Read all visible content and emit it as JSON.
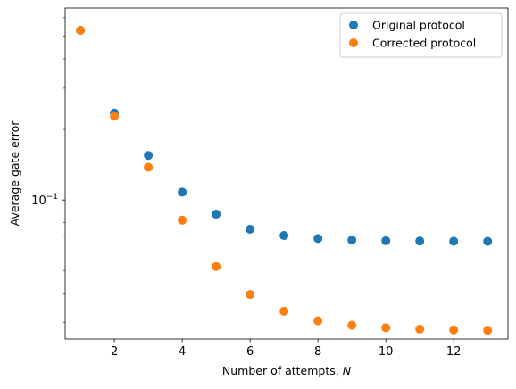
{
  "chart_data": {
    "type": "scatter",
    "title": "",
    "xlabel": "Number of attempts, ",
    "xlabel_var": "N",
    "ylabel": "Average gate error",
    "yscale": "log",
    "xlim": [
      0.55,
      13.6
    ],
    "ylim": [
      0.0255,
      0.66
    ],
    "x_ticks": [
      2,
      4,
      6,
      8,
      10,
      12
    ],
    "x_tick_labels": [
      "2",
      "4",
      "6",
      "8",
      "10",
      "12"
    ],
    "y_major_ticks": [
      0.1
    ],
    "y_major_tick_labels": [
      "10",
      "−1"
    ],
    "y_minor_ticks": [
      0.03,
      0.04,
      0.05,
      0.06,
      0.07,
      0.08,
      0.09,
      0.2,
      0.3,
      0.4,
      0.5,
      0.6
    ],
    "grid": false,
    "legend_position": "top-right",
    "series": [
      {
        "name": "Original protocol",
        "color": "#1f77b4",
        "x": [
          1,
          2,
          3,
          4,
          5,
          6,
          7,
          8,
          9,
          10,
          11,
          12,
          13
        ],
        "y": [
          0.53,
          0.235,
          0.155,
          0.108,
          0.087,
          0.075,
          0.0705,
          0.0685,
          0.0675,
          0.067,
          0.0668,
          0.0667,
          0.0666
        ]
      },
      {
        "name": "Corrected protocol",
        "color": "#ff7f0e",
        "x": [
          1,
          2,
          3,
          4,
          5,
          6,
          7,
          8,
          9,
          10,
          11,
          12,
          13
        ],
        "y": [
          0.53,
          0.228,
          0.138,
          0.082,
          0.052,
          0.0395,
          0.0335,
          0.0305,
          0.0292,
          0.0285,
          0.0281,
          0.0279,
          0.0278
        ]
      }
    ]
  }
}
